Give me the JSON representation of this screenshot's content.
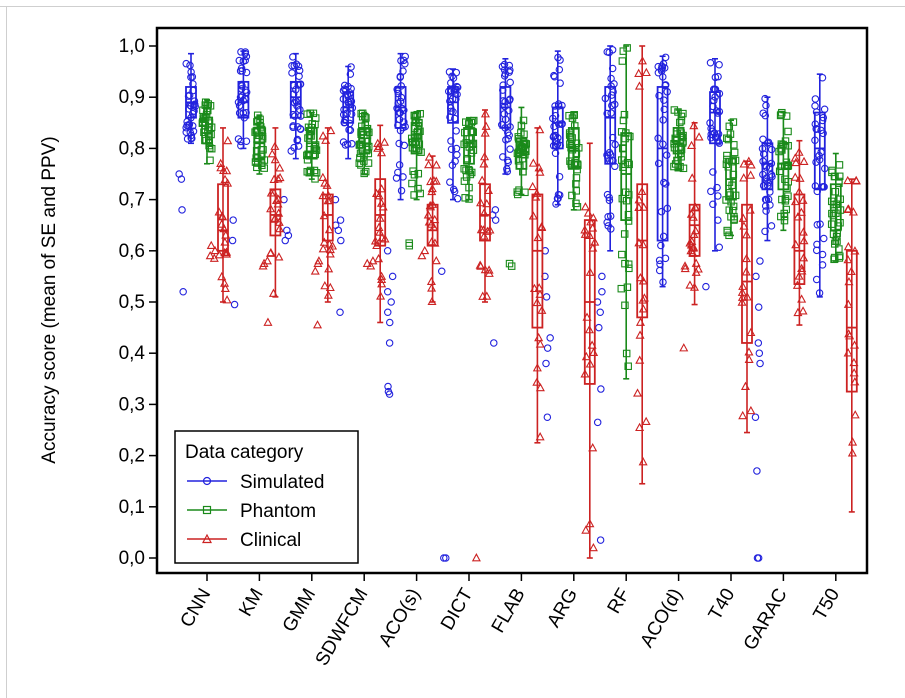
{
  "chart_data": {
    "type": "box",
    "ylabel": "Accuracy score (mean of SE and PPV)",
    "xlabel": "",
    "ylim": [
      0,
      1
    ],
    "yticks": [
      "0,0",
      "0,1",
      "0,2",
      "0,3",
      "0,4",
      "0,5",
      "0,6",
      "0,7",
      "0,8",
      "0,9",
      "1,0"
    ],
    "categories": [
      "CNN",
      "KM",
      "GMM",
      "SDWFCM",
      "ACO(s)",
      "DICT",
      "FLAB",
      "ARG",
      "RF",
      "ACO(d)",
      "T40",
      "GARAC",
      "T50"
    ],
    "legend": {
      "title": "Data category",
      "position": "bottom-left"
    },
    "series": [
      {
        "name": "Simulated",
        "color": "#2222dd",
        "marker": "circle",
        "boxes": [
          {
            "min": 0.81,
            "q1": 0.86,
            "median": 0.89,
            "q3": 0.92,
            "max": 0.985,
            "outliers": [
              0.75,
              0.74,
              0.68,
              0.52
            ]
          },
          {
            "min": 0.8,
            "q1": 0.86,
            "median": 0.89,
            "q3": 0.93,
            "max": 0.99,
            "outliers": [
              0.66,
              0.62,
              0.495
            ]
          },
          {
            "min": 0.78,
            "q1": 0.86,
            "median": 0.9,
            "q3": 0.93,
            "max": 0.985,
            "outliers": [
              0.7,
              0.64,
              0.63,
              0.62
            ]
          },
          {
            "min": 0.78,
            "q1": 0.85,
            "median": 0.88,
            "q3": 0.91,
            "max": 0.96,
            "outliers": [
              0.7,
              0.66,
              0.65,
              0.64,
              0.62,
              0.48
            ]
          },
          {
            "min": 0.7,
            "q1": 0.84,
            "median": 0.88,
            "q3": 0.92,
            "max": 0.985,
            "outliers": [
              0.6,
              0.55,
              0.52,
              0.5,
              0.48,
              0.46,
              0.42,
              0.335,
              0.325,
              0.32
            ]
          },
          {
            "min": 0.7,
            "q1": 0.85,
            "median": 0.89,
            "q3": 0.92,
            "max": 0.955,
            "outliers": [
              0.56,
              0.0,
              0.0
            ]
          },
          {
            "min": 0.75,
            "q1": 0.84,
            "median": 0.88,
            "q3": 0.92,
            "max": 0.975,
            "outliers": [
              0.68,
              0.67,
              0.66,
              0.42
            ]
          },
          {
            "min": 0.69,
            "q1": 0.8,
            "median": 0.85,
            "q3": 0.88,
            "max": 0.99,
            "outliers": [
              0.6,
              0.55,
              0.51,
              0.43,
              0.41,
              0.38,
              0.275
            ]
          },
          {
            "min": 0.6,
            "q1": 0.77,
            "median": 0.86,
            "q3": 0.92,
            "max": 1.0,
            "outliers": [
              0.55,
              0.52,
              0.5,
              0.48,
              0.45,
              0.33,
              0.265,
              0.035
            ]
          },
          {
            "min": 0.53,
            "q1": 0.62,
            "median": 0.8,
            "q3": 0.92,
            "max": 0.98,
            "outliers": []
          },
          {
            "min": 0.6,
            "q1": 0.81,
            "median": 0.87,
            "q3": 0.91,
            "max": 0.975,
            "outliers": [
              0.53
            ]
          },
          {
            "min": 0.62,
            "q1": 0.72,
            "median": 0.77,
            "q3": 0.81,
            "max": 0.9,
            "outliers": [
              0.58,
              0.55,
              0.49,
              0.42,
              0.4,
              0.38,
              0.275,
              0.17,
              0.0,
              0.0
            ]
          },
          {
            "min": 0.51,
            "q1": 0.72,
            "median": 0.8,
            "q3": 0.87,
            "max": 0.945,
            "outliers": []
          }
        ]
      },
      {
        "name": "Phantom",
        "color": "#1a8a1a",
        "marker": "square",
        "boxes": [
          {
            "min": 0.77,
            "q1": 0.81,
            "median": 0.83,
            "q3": 0.86,
            "max": 0.895,
            "outliers": []
          },
          {
            "min": 0.75,
            "q1": 0.78,
            "median": 0.81,
            "q3": 0.84,
            "max": 0.865,
            "outliers": []
          },
          {
            "min": 0.74,
            "q1": 0.78,
            "median": 0.81,
            "q3": 0.84,
            "max": 0.87,
            "outliers": []
          },
          {
            "min": 0.75,
            "q1": 0.79,
            "median": 0.81,
            "q3": 0.84,
            "max": 0.87,
            "outliers": []
          },
          {
            "min": 0.7,
            "q1": 0.79,
            "median": 0.82,
            "q3": 0.85,
            "max": 0.87,
            "outliers": [
              0.615,
              0.61
            ]
          },
          {
            "min": 0.7,
            "q1": 0.77,
            "median": 0.81,
            "q3": 0.84,
            "max": 0.86,
            "outliers": []
          },
          {
            "min": 0.71,
            "q1": 0.76,
            "median": 0.79,
            "q3": 0.82,
            "max": 0.88,
            "outliers": [
              0.575,
              0.57
            ]
          },
          {
            "min": 0.68,
            "q1": 0.76,
            "median": 0.8,
            "q3": 0.84,
            "max": 0.87,
            "outliers": []
          },
          {
            "min": 0.35,
            "q1": 0.66,
            "median": 0.75,
            "q3": 0.83,
            "max": 1.0,
            "outliers": []
          },
          {
            "min": 0.76,
            "q1": 0.79,
            "median": 0.81,
            "q3": 0.84,
            "max": 0.875,
            "outliers": []
          },
          {
            "min": 0.63,
            "q1": 0.7,
            "median": 0.74,
            "q3": 0.78,
            "max": 0.855,
            "outliers": []
          },
          {
            "min": 0.64,
            "q1": 0.72,
            "median": 0.77,
            "q3": 0.81,
            "max": 0.87,
            "outliers": []
          },
          {
            "min": 0.58,
            "q1": 0.64,
            "median": 0.69,
            "q3": 0.73,
            "max": 0.79,
            "outliers": []
          }
        ]
      },
      {
        "name": "Clinical",
        "color": "#cc2222",
        "marker": "triangle",
        "boxes": [
          {
            "min": 0.5,
            "q1": 0.6,
            "median": 0.64,
            "q3": 0.73,
            "max": 0.84,
            "outliers": [
              0.61,
              0.6,
              0.59,
              0.585
            ]
          },
          {
            "min": 0.51,
            "q1": 0.63,
            "median": 0.67,
            "q3": 0.72,
            "max": 0.84,
            "outliers": [
              0.58,
              0.575,
              0.57,
              0.46
            ]
          },
          {
            "min": 0.5,
            "q1": 0.62,
            "median": 0.67,
            "q3": 0.71,
            "max": 0.84,
            "outliers": [
              0.58,
              0.575,
              0.56,
              0.455
            ]
          },
          {
            "min": 0.46,
            "q1": 0.61,
            "median": 0.67,
            "q3": 0.74,
            "max": 0.845,
            "outliers": [
              0.58,
              0.575,
              0.57
            ]
          },
          {
            "min": 0.5,
            "q1": 0.61,
            "median": 0.64,
            "q3": 0.69,
            "max": 0.785,
            "outliers": [
              0.6,
              0.59
            ]
          },
          {
            "min": 0.5,
            "q1": 0.62,
            "median": 0.67,
            "q3": 0.73,
            "max": 0.875,
            "outliers": [
              0.0
            ]
          },
          {
            "min": 0.225,
            "q1": 0.45,
            "median": 0.6,
            "q3": 0.71,
            "max": 0.84,
            "outliers": []
          },
          {
            "min": 0.0,
            "q1": 0.34,
            "median": 0.5,
            "q3": 0.66,
            "max": 0.81,
            "outliers": []
          },
          {
            "min": 0.145,
            "q1": 0.47,
            "median": 0.62,
            "q3": 0.73,
            "max": 1.0,
            "outliers": []
          },
          {
            "min": 0.495,
            "q1": 0.59,
            "median": 0.65,
            "q3": 0.69,
            "max": 0.85,
            "outliers": [
              0.41,
              0.57,
              0.565
            ]
          },
          {
            "min": 0.245,
            "q1": 0.42,
            "median": 0.54,
            "q3": 0.69,
            "max": 0.775,
            "outliers": []
          },
          {
            "min": 0.455,
            "q1": 0.535,
            "median": 0.6,
            "q3": 0.71,
            "max": 0.815,
            "outliers": []
          },
          {
            "min": 0.09,
            "q1": 0.325,
            "median": 0.45,
            "q3": 0.6,
            "max": 0.74,
            "outliers": []
          }
        ]
      }
    ]
  }
}
